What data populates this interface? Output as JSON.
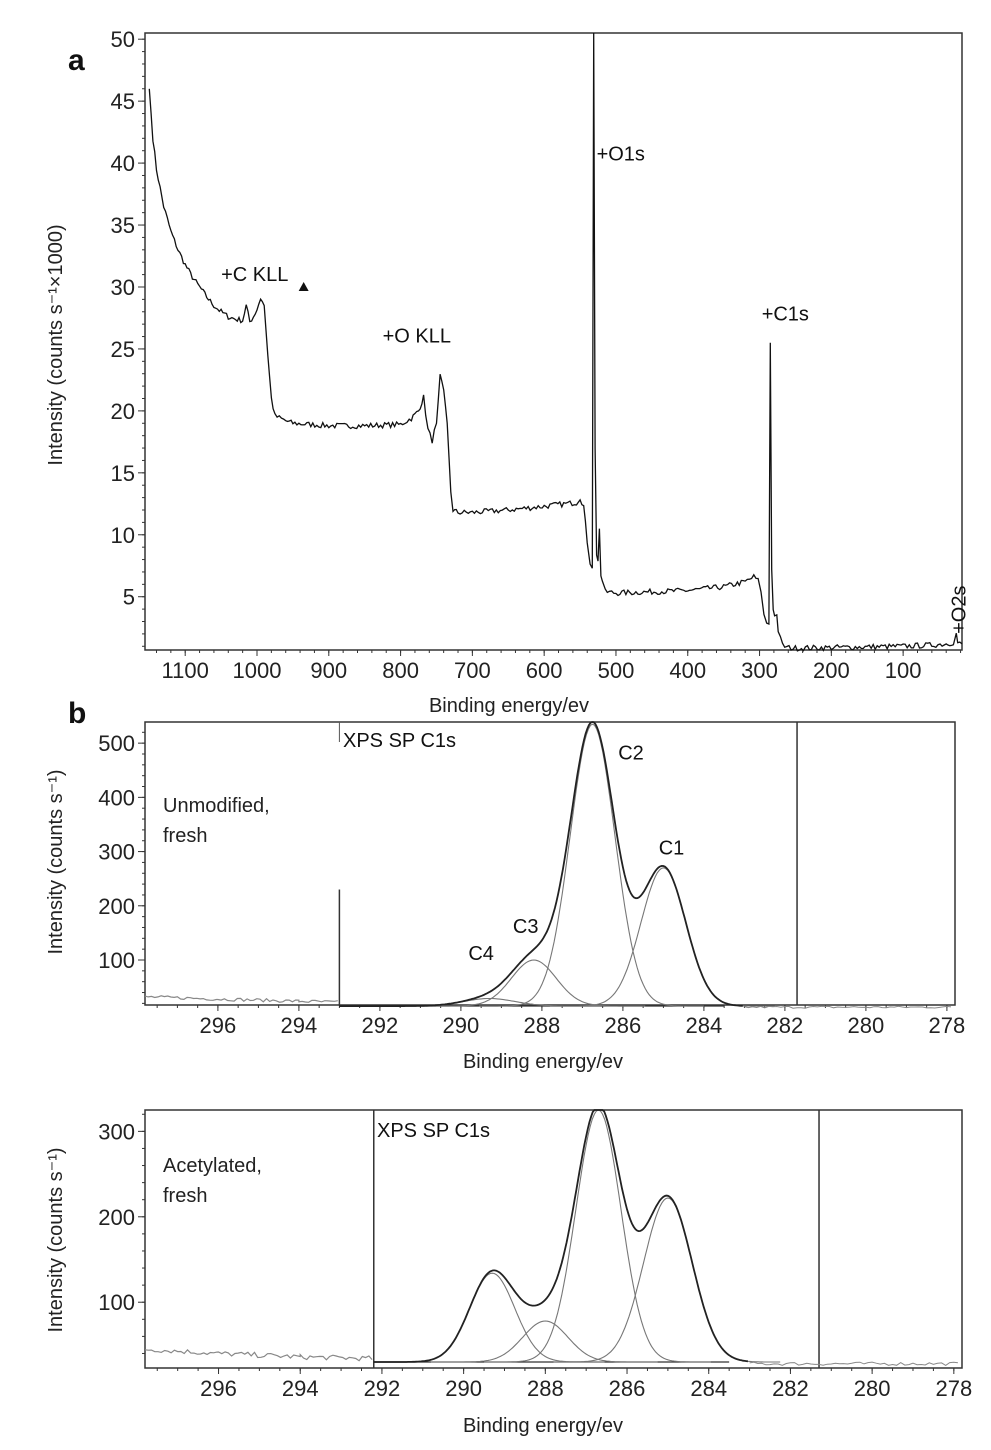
{
  "chart_data": [
    {
      "panel_label": "a",
      "type": "line",
      "xlabel": "Binding energy/ev",
      "ylabel": "Intensity (counts s⁻¹×1000)",
      "xlim": [
        1156,
        18
      ],
      "ylim": [
        0.7,
        50.5
      ],
      "x_reversed": true,
      "xticks": [
        1100,
        1000,
        900,
        800,
        700,
        600,
        500,
        400,
        300,
        200,
        100
      ],
      "yticks": [
        5,
        10,
        15,
        20,
        25,
        30,
        35,
        40,
        45,
        50
      ],
      "grid": false,
      "annotations": [
        {
          "text": "+C KLL",
          "x": 1050,
          "y": 30.5
        },
        {
          "text": "+O KLL",
          "x": 825,
          "y": 25.5
        },
        {
          "text": "+O1s",
          "x": 527,
          "y": 40.2
        },
        {
          "text": "+C1s",
          "x": 297,
          "y": 27.3
        },
        {
          "text": "+O2s",
          "x": 24,
          "y": 2.0,
          "rotated": true
        }
      ],
      "marker": {
        "shape": "triangle",
        "x": 935,
        "y": 30
      },
      "series": [
        {
          "x": [
            1150,
            1145,
            1140,
            1130,
            1120,
            1110,
            1100,
            1090,
            1080,
            1070,
            1060,
            1050,
            1040,
            1030,
            1020,
            1015,
            1010,
            1005,
            1000,
            995,
            990,
            985,
            980,
            975,
            960,
            950,
            900,
            850,
            800,
            785,
            775,
            768,
            762,
            756,
            750,
            745,
            740,
            735,
            730,
            727,
            720,
            700,
            650,
            600,
            570,
            555,
            550,
            545,
            540,
            536,
            533,
            531,
            529,
            527,
            525,
            523,
            521,
            519,
            515,
            500,
            450,
            400,
            350,
            320,
            308,
            302,
            298,
            294,
            290,
            287,
            285,
            283,
            281,
            279,
            276,
            274,
            271,
            268,
            262,
            250,
            200,
            150,
            100,
            60,
            40,
            30,
            26,
            24,
            21,
            18
          ],
          "y": [
            46,
            42,
            39.5,
            36.5,
            34.5,
            33,
            31.8,
            30.8,
            30,
            29.2,
            28.5,
            28,
            27.6,
            27.4,
            27.3,
            28.5,
            27.2,
            27.6,
            28.2,
            29.1,
            28.5,
            24.5,
            21,
            19.6,
            19.2,
            19,
            18.8,
            18.8,
            18.9,
            19.4,
            20,
            21.1,
            18.5,
            17.6,
            19,
            22.8,
            21.5,
            19,
            13.5,
            12,
            11.8,
            11.8,
            12,
            12.3,
            12.5,
            12.6,
            13,
            12.3,
            9.5,
            7.8,
            7.3,
            50.5,
            17,
            8.5,
            7.8,
            10.5,
            6.8,
            6.3,
            5.4,
            5.3,
            5.4,
            5.5,
            5.8,
            6.2,
            6.6,
            6.3,
            5.5,
            3.5,
            2.9,
            2.8,
            25.5,
            7.2,
            4,
            3.6,
            3.5,
            2.3,
            1.6,
            1.1,
            0.9,
            0.85,
            0.9,
            0.95,
            1.0,
            1.1,
            1.2,
            1.3,
            2.0,
            1.3,
            1.2,
            1.2
          ]
        }
      ]
    },
    {
      "panel_label": "b",
      "type": "line",
      "xlabel": "Binding energy/ev",
      "ylabel": "Intensity (counts s⁻¹)",
      "xlim": [
        297.8,
        277.8
      ],
      "ylim": [
        17,
        539
      ],
      "x_reversed": true,
      "xticks": [
        296,
        294,
        292,
        290,
        288,
        286,
        284,
        282,
        280,
        278
      ],
      "yticks": [
        100,
        200,
        300,
        400,
        500
      ],
      "grid": false,
      "sample_label": [
        "Unmodified,",
        "fresh"
      ],
      "region_label": "XPS SP C1s",
      "region": [
        293.0,
        281.7
      ],
      "baseline": 15,
      "raw_background": {
        "x": [
          297.8,
          296,
          294,
          293
        ],
        "y": [
          32,
          28,
          24,
          22
        ]
      },
      "components": [
        {
          "name": "C1",
          "center": 285.0,
          "height": 255,
          "fwhm": 1.3,
          "label_at": [
            284.8,
            295
          ]
        },
        {
          "name": "C2",
          "center": 286.75,
          "height": 520,
          "fwhm": 1.3,
          "label_at": [
            285.8,
            470
          ]
        },
        {
          "name": "C3",
          "center": 288.2,
          "height": 85,
          "fwhm": 1.3,
          "label_at": [
            288.4,
            150
          ]
        },
        {
          "name": "C4",
          "center": 289.3,
          "height": 14,
          "fwhm": 1.5,
          "label_at": [
            289.5,
            100
          ]
        }
      ]
    },
    {
      "type": "line",
      "xlabel": "Binding energy/ev",
      "ylabel": "Intensity (counts s⁻¹)",
      "xlim": [
        297.8,
        277.8
      ],
      "ylim": [
        23,
        325
      ],
      "x_reversed": true,
      "xticks": [
        296,
        294,
        292,
        290,
        288,
        286,
        284,
        282,
        280,
        278
      ],
      "yticks": [
        100,
        200,
        300
      ],
      "grid": false,
      "sample_label": [
        "Acetylated,",
        "fresh"
      ],
      "region_label": "XPS SP C1s",
      "region": [
        292.2,
        281.3
      ],
      "baseline": 30,
      "raw_background": {
        "x": [
          297.8,
          296,
          294,
          292.2
        ],
        "y": [
          45,
          40,
          36,
          34
        ]
      },
      "components": [
        {
          "center": 285.0,
          "height": 192,
          "fwhm": 1.4
        },
        {
          "center": 286.7,
          "height": 295,
          "fwhm": 1.3
        },
        {
          "center": 288.0,
          "height": 48,
          "fwhm": 1.3
        },
        {
          "center": 289.3,
          "height": 104,
          "fwhm": 1.3
        }
      ]
    }
  ]
}
